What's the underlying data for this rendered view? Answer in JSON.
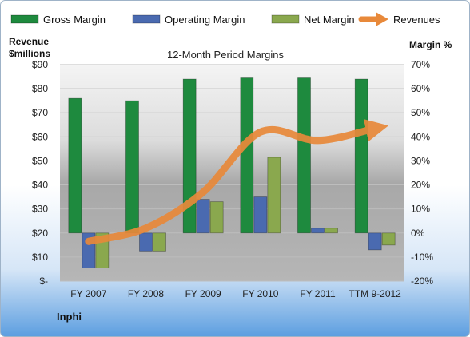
{
  "company": "Inphi",
  "chart_data": {
    "type": "bar",
    "title": "12-Month Period Margins",
    "left_axis_label_lines": [
      "Revenue",
      "$millions"
    ],
    "right_axis_label": "Margin %",
    "categories": [
      "FY 2007",
      "FY 2008",
      "FY 2009",
      "FY 2010",
      "FY 2011",
      "TTM 9-2012"
    ],
    "left_axis": {
      "min": 0,
      "max": 90,
      "step": 10,
      "tick_labels": [
        "$-",
        "$10",
        "$20",
        "$30",
        "$40",
        "$50",
        "$60",
        "$70",
        "$80",
        "$90"
      ]
    },
    "right_axis": {
      "min": -20,
      "max": 70,
      "step": 10,
      "tick_labels": [
        "-20%",
        "-10%",
        "0%",
        "10%",
        "20%",
        "30%",
        "40%",
        "50%",
        "60%",
        "70%"
      ]
    },
    "series": [
      {
        "name": "Gross Margin",
        "kind": "bar",
        "axis": "right",
        "color": "#1e8a3e",
        "values": [
          56,
          55,
          64,
          64.5,
          64.5,
          64
        ]
      },
      {
        "name": "Operating Margin",
        "kind": "bar",
        "axis": "right",
        "color": "#4a6ab0",
        "values": [
          -14.5,
          -7.5,
          14,
          15,
          2,
          -7
        ]
      },
      {
        "name": "Net Margin",
        "kind": "bar",
        "axis": "right",
        "color": "#8aa84e",
        "values": [
          -14.5,
          -7.5,
          13,
          31.5,
          2,
          -5
        ]
      },
      {
        "name": "Revenues",
        "kind": "line",
        "axis": "left",
        "color": "#e8893a",
        "values": [
          16.5,
          22,
          37,
          62,
          58.5,
          63.5
        ]
      }
    ],
    "grid": true,
    "legend_position": "top"
  }
}
